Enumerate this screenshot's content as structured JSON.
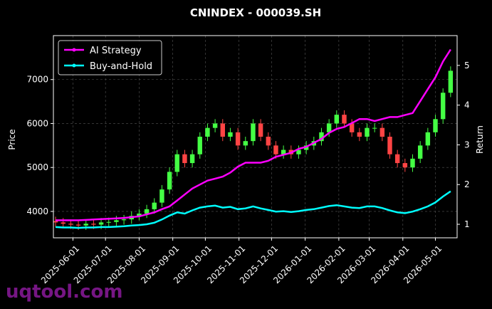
{
  "chart_data": {
    "type": "candlestick",
    "title": "CNINDEX - 000039.SH",
    "y_label": "Price",
    "y2_label": "Return",
    "watermark": "uqtool.com",
    "x": [
      "2025-05-16",
      "2025-05-23",
      "2025-05-30",
      "2025-06-06",
      "2025-06-13",
      "2025-06-20",
      "2025-06-27",
      "2025-07-04",
      "2025-07-11",
      "2025-07-18",
      "2025-07-25",
      "2025-08-01",
      "2025-08-08",
      "2025-08-15",
      "2025-08-22",
      "2025-08-29",
      "2025-09-05",
      "2025-09-12",
      "2025-09-19",
      "2025-09-26",
      "2025-10-03",
      "2025-10-10",
      "2025-10-17",
      "2025-10-24",
      "2025-10-31",
      "2025-11-07",
      "2025-11-14",
      "2025-11-21",
      "2025-11-28",
      "2025-12-05",
      "2025-12-12",
      "2025-12-19",
      "2025-12-26",
      "2026-01-02",
      "2026-01-09",
      "2026-01-16",
      "2026-01-23",
      "2026-01-30",
      "2026-02-06",
      "2026-02-13",
      "2026-02-20",
      "2026-02-27",
      "2026-03-06",
      "2026-03-13",
      "2026-03-20",
      "2026-03-27",
      "2026-04-03",
      "2026-04-10",
      "2026-04-17",
      "2026-04-24",
      "2026-05-01",
      "2026-05-08",
      "2026-05-15"
    ],
    "open": [
      3780,
      3750,
      3720,
      3700,
      3680,
      3720,
      3700,
      3750,
      3760,
      3800,
      3820,
      3900,
      3950,
      4050,
      4200,
      4500,
      4900,
      5300,
      5100,
      5300,
      5700,
      5900,
      6000,
      5700,
      5800,
      5500,
      5600,
      6000,
      5700,
      5500,
      5300,
      5400,
      5300,
      5400,
      5500,
      5600,
      5800,
      6000,
      6200,
      6000,
      5800,
      5700,
      5900,
      5900,
      5700,
      5300,
      5100,
      5000,
      5200,
      5500,
      5800,
      6100,
      6700
    ],
    "high": [
      3880,
      3850,
      3820,
      3800,
      3820,
      3820,
      3850,
      3860,
      3900,
      3920,
      4000,
      4050,
      4150,
      4300,
      4600,
      5000,
      5400,
      5400,
      5400,
      5800,
      6000,
      6100,
      6100,
      5900,
      5900,
      5700,
      6100,
      6100,
      5800,
      5600,
      5500,
      5500,
      5500,
      5600,
      5700,
      5900,
      6100,
      6300,
      6300,
      6100,
      5900,
      6000,
      6000,
      6000,
      5800,
      5400,
      5200,
      5300,
      5600,
      5900,
      6200,
      6800,
      7300
    ],
    "low": [
      3650,
      3620,
      3600,
      3580,
      3580,
      3600,
      3600,
      3650,
      3660,
      3700,
      3720,
      3800,
      3850,
      3950,
      4100,
      4400,
      4800,
      5000,
      5000,
      5200,
      5600,
      5800,
      5600,
      5600,
      5400,
      5400,
      5500,
      5600,
      5400,
      5200,
      5200,
      5200,
      5200,
      5300,
      5400,
      5500,
      5700,
      5900,
      5900,
      5700,
      5600,
      5600,
      5800,
      5600,
      5200,
      5000,
      4900,
      4900,
      5100,
      5400,
      5700,
      6000,
      6600
    ],
    "close": [
      3750,
      3720,
      3700,
      3680,
      3720,
      3700,
      3750,
      3760,
      3800,
      3820,
      3900,
      3950,
      4050,
      4200,
      4500,
      4900,
      5300,
      5100,
      5300,
      5700,
      5900,
      6000,
      5700,
      5800,
      5500,
      5600,
      6000,
      5700,
      5500,
      5300,
      5400,
      5300,
      5400,
      5500,
      5600,
      5800,
      6000,
      6200,
      6000,
      5800,
      5700,
      5900,
      5900,
      5700,
      5300,
      5100,
      5000,
      5200,
      5500,
      5800,
      6100,
      6700,
      7200
    ],
    "up_color": "#44ff44",
    "down_color": "#ff4444",
    "series": [
      {
        "name": "AI Strategy",
        "color": "#ff00ff",
        "axis": "y2",
        "values": [
          1.1,
          1.1,
          1.1,
          1.1,
          1.11,
          1.12,
          1.13,
          1.14,
          1.15,
          1.16,
          1.18,
          1.2,
          1.25,
          1.3,
          1.38,
          1.45,
          1.6,
          1.75,
          1.9,
          2.0,
          2.1,
          2.15,
          2.2,
          2.3,
          2.45,
          2.55,
          2.55,
          2.55,
          2.6,
          2.7,
          2.75,
          2.8,
          2.9,
          2.95,
          3.05,
          3.15,
          3.3,
          3.4,
          3.45,
          3.55,
          3.65,
          3.65,
          3.6,
          3.65,
          3.7,
          3.7,
          3.75,
          3.8,
          4.1,
          4.4,
          4.7,
          5.1,
          5.4
        ]
      },
      {
        "name": "Buy-and-Hold",
        "color": "#00ffff",
        "axis": "y2",
        "values": [
          0.93,
          0.92,
          0.92,
          0.91,
          0.92,
          0.92,
          0.93,
          0.93,
          0.94,
          0.95,
          0.97,
          0.98,
          1.0,
          1.04,
          1.12,
          1.22,
          1.3,
          1.27,
          1.35,
          1.42,
          1.45,
          1.47,
          1.42,
          1.44,
          1.38,
          1.4,
          1.45,
          1.4,
          1.36,
          1.32,
          1.33,
          1.31,
          1.33,
          1.36,
          1.38,
          1.42,
          1.46,
          1.48,
          1.45,
          1.42,
          1.41,
          1.45,
          1.45,
          1.41,
          1.35,
          1.3,
          1.28,
          1.32,
          1.38,
          1.45,
          1.55,
          1.7,
          1.83
        ]
      }
    ],
    "xlim": [
      "2025-05-14",
      "2026-05-21"
    ],
    "xticks": [
      "2025-06-01",
      "2025-07-01",
      "2025-08-01",
      "2025-09-01",
      "2025-10-01",
      "2025-11-01",
      "2025-12-01",
      "2026-01-01",
      "2026-02-01",
      "2026-03-01",
      "2026-04-01",
      "2026-05-01"
    ],
    "ylim": [
      3400,
      8000
    ],
    "yticks": [
      4000,
      5000,
      6000,
      7000
    ],
    "y2lim": [
      0.66,
      5.75
    ],
    "y2ticks": [
      1,
      2,
      3,
      4,
      5
    ],
    "grid": true,
    "legend": "upper left"
  }
}
